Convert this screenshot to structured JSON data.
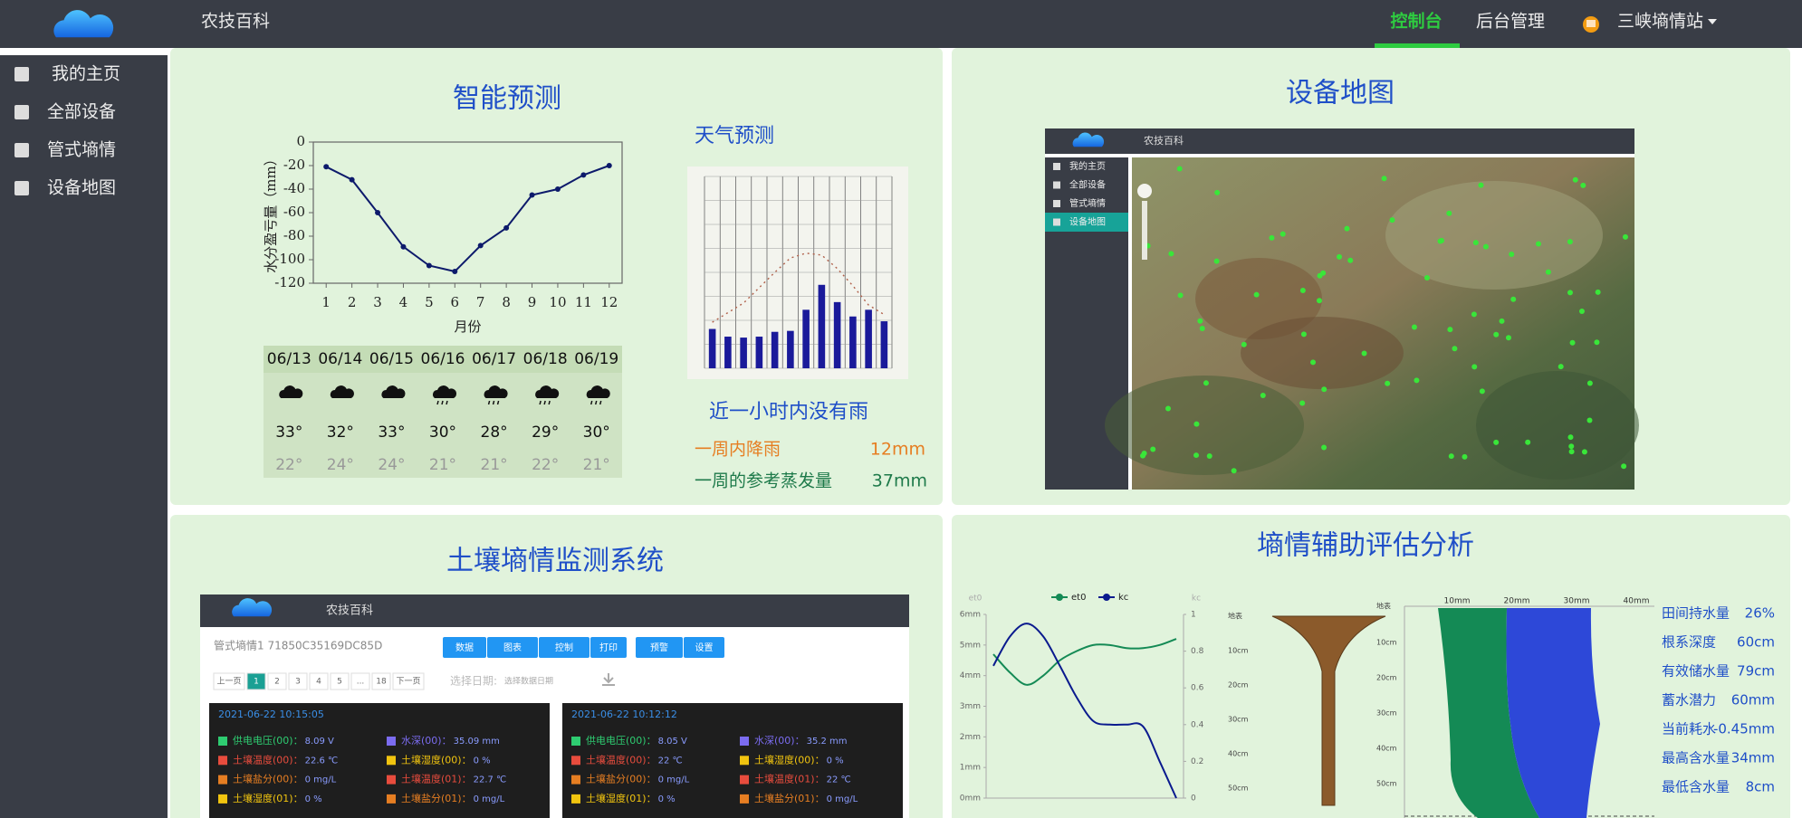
{
  "nav": {
    "brand": "农技百科",
    "links": [
      "控制台",
      "后台管理"
    ],
    "user": "三峡墒情站"
  },
  "sidebar": [
    "我的主页",
    "全部设备",
    "管式墒情",
    "设备地图"
  ],
  "forecast": {
    "title": "智能预测",
    "chart": {
      "type": "line",
      "y_label": "水分盈亏量（mm）",
      "x_label": "月份",
      "x": [
        1,
        2,
        3,
        4,
        5,
        6,
        7,
        8,
        9,
        10,
        11,
        12
      ],
      "values": [
        -21,
        -32,
        -60,
        -89,
        -105,
        -110,
        -88,
        -73,
        -45,
        -40,
        -28,
        -20
      ],
      "color": "#0d1a6b",
      "xlim": [
        0.5,
        12.5
      ],
      "xticks": [
        1,
        2,
        3,
        4,
        5,
        6,
        7,
        8,
        9,
        10,
        11,
        12
      ],
      "ylim": [
        -120,
        0
      ],
      "yticks": [
        0,
        -20,
        -40,
        -60,
        -80,
        -100,
        -120
      ],
      "grid": false
    },
    "weather": {
      "dates": [
        "06/13",
        "06/14",
        "06/15",
        "06/16",
        "06/17",
        "06/18",
        "06/19"
      ],
      "highs": [
        "33°",
        "32°",
        "33°",
        "30°",
        "28°",
        "29°",
        "30°"
      ],
      "lows": [
        "22°",
        "24°",
        "24°",
        "21°",
        "21°",
        "22°",
        "21°"
      ]
    }
  },
  "side": {
    "title": "天气预测",
    "chart": {
      "type": "bar",
      "color": "#1a1a9a",
      "line_color": "#b0604a",
      "ylim": [
        0,
        1000
      ],
      "values": [
        205,
        165,
        160,
        165,
        190,
        195,
        305,
        435,
        345,
        270,
        305,
        245
      ],
      "line": [
        240,
        290,
        340,
        420,
        500,
        575,
        600,
        590,
        520,
        430,
        330,
        280
      ]
    },
    "status": "近一小时内没有雨",
    "rain_label": "一周内降雨",
    "rain_value": "12mm",
    "evap_label": "一周的参考蒸发量",
    "evap_value": "37mm"
  },
  "map": {
    "title": "设备地图",
    "screenshot": {
      "brand": "农技百科",
      "menu": [
        "我的主页",
        "全部设备",
        "管式墒情",
        "设备地图"
      ]
    }
  },
  "soil": {
    "title": "土壤墒情监测系统",
    "screenshot": {
      "brand": "农技百科",
      "device": "管式墒情1 71850C35169DC85D",
      "buttons": [
        "数据",
        "图表",
        "控制",
        "打印",
        "预警",
        "设置"
      ],
      "pages": [
        "上一页",
        "1",
        "2",
        "3",
        "4",
        "5",
        "...",
        "18",
        "下一页"
      ],
      "date_label": "选择日期:",
      "date_placeholder": "选择数据日期",
      "cards": [
        {
          "time": "2021-06-22 10:15:05",
          "rows": [
            {
              "l1": "供电电压(00)：",
              "v1": "8.09 V",
              "l2": "水深(00)：",
              "v2": "35.09 mm"
            },
            {
              "l1": "土壤温度(00)：",
              "v1": "22.6 ℃",
              "l2": "土壤湿度(00)：",
              "v2": "0 %"
            },
            {
              "l1": "土壤盐分(00)：",
              "v1": "0 mg/L",
              "l2": "土壤温度(01)：",
              "v2": "22.7 ℃"
            },
            {
              "l1": "土壤湿度(01)：",
              "v1": "0 %",
              "l2": "土壤盐分(01)：",
              "v2": "0 mg/L"
            }
          ]
        },
        {
          "time": "2021-06-22 10:12:12",
          "rows": [
            {
              "l1": "供电电压(00)：",
              "v1": "8.05 V",
              "l2": "水深(00)：",
              "v2": "35.2 mm"
            },
            {
              "l1": "土壤温度(00)：",
              "v1": "22 ℃",
              "l2": "土壤湿度(00)：",
              "v2": "0 %"
            },
            {
              "l1": "土壤盐分(00)：",
              "v1": "0 mg/L",
              "l2": "土壤温度(01)：",
              "v2": "22 ℃"
            },
            {
              "l1": "土壤湿度(01)：",
              "v1": "0 %",
              "l2": "土壤盐分(01)：",
              "v2": "0 mg/L"
            }
          ]
        }
      ]
    }
  },
  "assessment": {
    "title": "墒情辅助评估分析",
    "chart": {
      "type": "line",
      "y_label": "et0",
      "y2_label": "kc",
      "series": [
        {
          "name": "et0",
          "color": "#148a55",
          "values": [
            4.7,
            4.1,
            3.7,
            4.0,
            4.5,
            4.8,
            5.0,
            5.0,
            4.9,
            4.9,
            5.0,
            5.2
          ]
        },
        {
          "name": "kc",
          "color": "#0a1a8e",
          "axis": "y2",
          "values": [
            0.72,
            0.88,
            0.95,
            0.88,
            0.72,
            0.55,
            0.42,
            0.4,
            0.4,
            0.39,
            0.2,
            0
          ]
        }
      ],
      "ylim": [
        0,
        6
      ],
      "yticks": [
        {
          "value": 0,
          "label": "0mm"
        },
        {
          "value": 1,
          "label": "1mm"
        },
        {
          "value": 2,
          "label": "2mm"
        },
        {
          "value": 3,
          "label": "3mm"
        },
        {
          "value": 4,
          "label": "4mm"
        },
        {
          "value": 5,
          "label": "5mm"
        },
        {
          "value": 6,
          "label": "6mm"
        }
      ],
      "y2lim": [
        0,
        1
      ],
      "y2ticks": [
        0,
        0.2,
        0.4,
        0.6,
        0.8,
        1
      ]
    },
    "depth_labels": [
      "地表",
      "10cm",
      "20cm",
      "30cm",
      "40cm",
      "50cm"
    ],
    "width_labels": [
      "10mm",
      "20mm",
      "30mm",
      "40mm"
    ],
    "stats": [
      {
        "label": "田间持水量",
        "value": "26%"
      },
      {
        "label": "根系深度",
        "value": "60cm"
      },
      {
        "label": "有效储水量",
        "value": "79cm"
      },
      {
        "label": "蓄水潜力",
        "value": "60mm"
      },
      {
        "label": "当前耗水",
        "value": "-0.45mm"
      },
      {
        "label": "最高含水量",
        "value": "34mm"
      },
      {
        "label": "最低含水量",
        "value": "8cm"
      }
    ]
  }
}
